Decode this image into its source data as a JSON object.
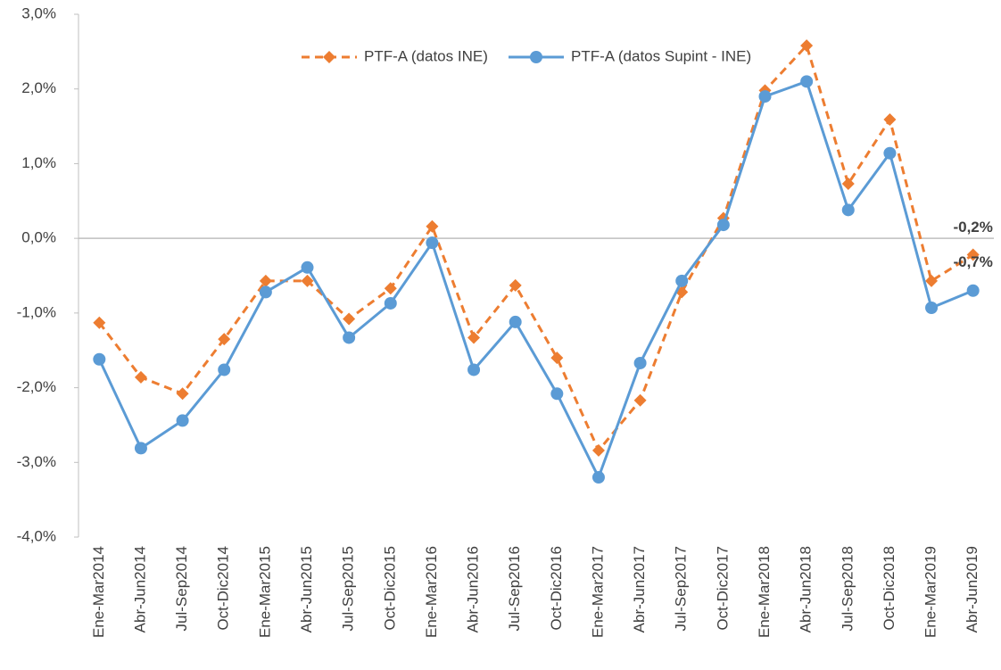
{
  "chart_data": {
    "type": "line",
    "categories": [
      "Ene-Mar2014",
      "Abr-Jun2014",
      "Jul-Sep2014",
      "Oct-Dic2014",
      "Ene-Mar2015",
      "Abr-Jun2015",
      "Jul-Sep2015",
      "Oct-Dic2015",
      "Ene-Mar2016",
      "Abr-Jun2016",
      "Jul-Sep2016",
      "Oct-Dic2016",
      "Ene-Mar2017",
      "Abr-Jun2017",
      "Jul-Sep2017",
      "Oct-Dic2017",
      "Ene-Mar2018",
      "Abr-Jun2018",
      "Jul-Sep2018",
      "Oct-Dic2018",
      "Ene-Mar2019",
      "Abr-Jun2019"
    ],
    "series": [
      {
        "name": "PTF-A (datos INE)",
        "color": "#ed7d31",
        "dashed": true,
        "marker": "diamond",
        "values": [
          -1.13,
          -1.86,
          -2.08,
          -1.35,
          -0.57,
          -0.57,
          -1.08,
          -0.67,
          0.16,
          -1.33,
          -0.63,
          -1.6,
          -2.84,
          -2.17,
          -0.72,
          0.27,
          1.98,
          2.58,
          0.73,
          1.59,
          -0.57,
          -0.22
        ],
        "value_labels": [
          null,
          null,
          null,
          null,
          null,
          null,
          null,
          null,
          null,
          null,
          null,
          null,
          null,
          null,
          null,
          null,
          null,
          null,
          null,
          null,
          null,
          "-0,2%"
        ]
      },
      {
        "name": "PTF-A (datos Supint - INE)",
        "color": "#5b9bd5",
        "dashed": false,
        "marker": "circle",
        "values": [
          -1.62,
          -2.81,
          -2.44,
          -1.76,
          -0.72,
          -0.39,
          -1.33,
          -0.87,
          -0.06,
          -1.76,
          -1.12,
          -2.08,
          -3.2,
          -1.67,
          -0.57,
          0.18,
          1.9,
          2.1,
          0.38,
          1.14,
          -0.93,
          -0.7
        ],
        "value_labels": [
          null,
          null,
          null,
          null,
          null,
          null,
          null,
          null,
          null,
          null,
          null,
          null,
          null,
          null,
          null,
          null,
          null,
          null,
          null,
          null,
          null,
          "-0,7%"
        ]
      }
    ],
    "ylim": [
      -4,
      3
    ],
    "yticks": [
      {
        "value": -4,
        "label": "-4,0%"
      },
      {
        "value": -3,
        "label": "-3,0%"
      },
      {
        "value": -2,
        "label": "-2,0%"
      },
      {
        "value": -1,
        "label": "-1,0%"
      },
      {
        "value": 0,
        "label": "0,0%"
      },
      {
        "value": 1,
        "label": "1,0%"
      },
      {
        "value": 2,
        "label": "2,0%"
      },
      {
        "value": 3,
        "label": "3,0%"
      }
    ],
    "grid": false
  }
}
